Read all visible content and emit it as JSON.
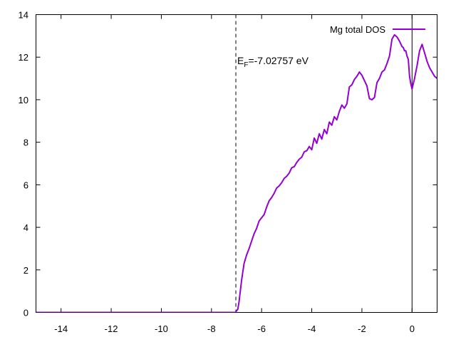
{
  "chart_data": {
    "type": "line",
    "title": "",
    "xlabel": "",
    "ylabel": "",
    "xlim": [
      -15,
      1
    ],
    "ylim": [
      0,
      14
    ],
    "grid": false,
    "legend_position": "top-right",
    "x_ticks": [
      -14,
      -12,
      -10,
      -8,
      -6,
      -4,
      -2,
      0
    ],
    "y_ticks": [
      0,
      2,
      4,
      6,
      8,
      10,
      12,
      14
    ],
    "x_tick_labels": [
      "-14",
      "-12",
      "-10",
      "-8",
      "-6",
      "-4",
      "-2",
      "0"
    ],
    "y_tick_labels": [
      "0",
      "2",
      "4",
      "6",
      "8",
      "10",
      "12",
      "14"
    ],
    "fermi_level": -7.02757,
    "zero_line_x": 0,
    "annotation": {
      "prefix": "E",
      "subscript": "F",
      "suffix": "=-7.02757 eV"
    },
    "series": [
      {
        "name": "Mg total DOS",
        "color": "#9400d3",
        "x": [
          -15,
          -7.2,
          -7.05,
          -6.95,
          -6.9,
          -6.85,
          -6.8,
          -6.75,
          -6.7,
          -6.6,
          -6.5,
          -6.4,
          -6.3,
          -6.2,
          -6.1,
          -6.0,
          -5.9,
          -5.8,
          -5.7,
          -5.6,
          -5.5,
          -5.4,
          -5.3,
          -5.2,
          -5.1,
          -5.0,
          -4.9,
          -4.8,
          -4.7,
          -4.6,
          -4.5,
          -4.4,
          -4.3,
          -4.2,
          -4.1,
          -4.0,
          -3.9,
          -3.8,
          -3.7,
          -3.6,
          -3.5,
          -3.4,
          -3.3,
          -3.2,
          -3.1,
          -3.0,
          -2.9,
          -2.8,
          -2.7,
          -2.6,
          -2.5,
          -2.4,
          -2.3,
          -2.2,
          -2.1,
          -2.0,
          -1.9,
          -1.8,
          -1.7,
          -1.6,
          -1.5,
          -1.4,
          -1.3,
          -1.2,
          -1.1,
          -1.0,
          -0.9,
          -0.8,
          -0.7,
          -0.6,
          -0.5,
          -0.4,
          -0.35,
          -0.3,
          -0.25,
          -0.2,
          -0.15,
          -0.1,
          -0.05,
          0.0,
          0.1,
          0.2,
          0.3,
          0.4,
          0.5,
          0.6,
          0.7,
          0.8,
          0.9,
          1.0
        ],
        "y": [
          0,
          0,
          0,
          0.15,
          0.5,
          1.0,
          1.5,
          1.9,
          2.3,
          2.7,
          3.0,
          3.35,
          3.7,
          3.95,
          4.3,
          4.45,
          4.6,
          4.95,
          5.25,
          5.4,
          5.6,
          5.85,
          5.95,
          6.1,
          6.3,
          6.4,
          6.55,
          6.8,
          6.85,
          7.05,
          7.2,
          7.3,
          7.55,
          7.6,
          7.8,
          7.65,
          8.2,
          7.95,
          8.4,
          8.15,
          8.6,
          8.4,
          8.95,
          8.8,
          9.2,
          9.05,
          9.45,
          9.75,
          9.6,
          9.8,
          10.6,
          10.7,
          10.95,
          11.1,
          11.3,
          11.15,
          10.9,
          10.65,
          10.05,
          10.0,
          10.1,
          10.8,
          11.0,
          11.3,
          11.4,
          11.7,
          12.05,
          12.85,
          13.05,
          12.95,
          12.75,
          12.5,
          12.45,
          12.3,
          12.3,
          12.05,
          11.9,
          11.1,
          10.75,
          10.5,
          11.0,
          11.6,
          12.3,
          12.6,
          12.2,
          11.8,
          11.5,
          11.3,
          11.1,
          11.0
        ]
      }
    ]
  }
}
